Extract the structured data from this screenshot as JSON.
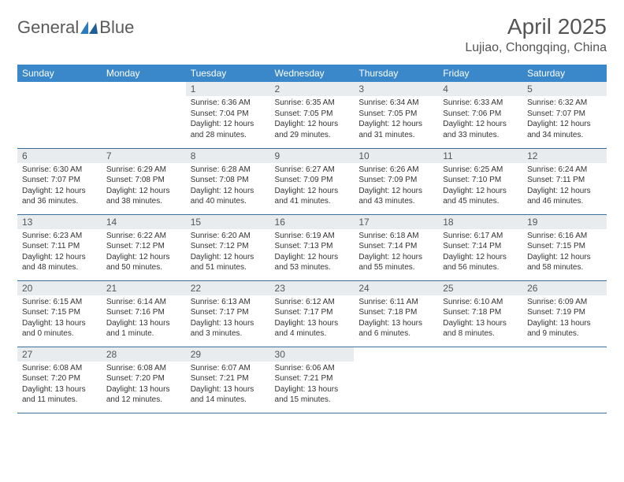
{
  "brand": {
    "name1": "General",
    "name2": "Blue"
  },
  "title": "April 2025",
  "location": "Lujiao, Chongqing, China",
  "colors": {
    "header_bg": "#3a87c9",
    "header_text": "#ffffff",
    "daynum_bg": "#e9ecef",
    "border": "#3a6f9a",
    "logo_gray": "#5a5a5a",
    "logo_blue": "#2b7bbf"
  },
  "layout": {
    "cols": 7,
    "rows": 5
  },
  "dayHeaders": [
    "Sunday",
    "Monday",
    "Tuesday",
    "Wednesday",
    "Thursday",
    "Friday",
    "Saturday"
  ],
  "weeks": [
    [
      null,
      null,
      {
        "n": "1",
        "sr": "Sunrise: 6:36 AM",
        "ss": "Sunset: 7:04 PM",
        "d1": "Daylight: 12 hours",
        "d2": "and 28 minutes."
      },
      {
        "n": "2",
        "sr": "Sunrise: 6:35 AM",
        "ss": "Sunset: 7:05 PM",
        "d1": "Daylight: 12 hours",
        "d2": "and 29 minutes."
      },
      {
        "n": "3",
        "sr": "Sunrise: 6:34 AM",
        "ss": "Sunset: 7:05 PM",
        "d1": "Daylight: 12 hours",
        "d2": "and 31 minutes."
      },
      {
        "n": "4",
        "sr": "Sunrise: 6:33 AM",
        "ss": "Sunset: 7:06 PM",
        "d1": "Daylight: 12 hours",
        "d2": "and 33 minutes."
      },
      {
        "n": "5",
        "sr": "Sunrise: 6:32 AM",
        "ss": "Sunset: 7:07 PM",
        "d1": "Daylight: 12 hours",
        "d2": "and 34 minutes."
      }
    ],
    [
      {
        "n": "6",
        "sr": "Sunrise: 6:30 AM",
        "ss": "Sunset: 7:07 PM",
        "d1": "Daylight: 12 hours",
        "d2": "and 36 minutes."
      },
      {
        "n": "7",
        "sr": "Sunrise: 6:29 AM",
        "ss": "Sunset: 7:08 PM",
        "d1": "Daylight: 12 hours",
        "d2": "and 38 minutes."
      },
      {
        "n": "8",
        "sr": "Sunrise: 6:28 AM",
        "ss": "Sunset: 7:08 PM",
        "d1": "Daylight: 12 hours",
        "d2": "and 40 minutes."
      },
      {
        "n": "9",
        "sr": "Sunrise: 6:27 AM",
        "ss": "Sunset: 7:09 PM",
        "d1": "Daylight: 12 hours",
        "d2": "and 41 minutes."
      },
      {
        "n": "10",
        "sr": "Sunrise: 6:26 AM",
        "ss": "Sunset: 7:09 PM",
        "d1": "Daylight: 12 hours",
        "d2": "and 43 minutes."
      },
      {
        "n": "11",
        "sr": "Sunrise: 6:25 AM",
        "ss": "Sunset: 7:10 PM",
        "d1": "Daylight: 12 hours",
        "d2": "and 45 minutes."
      },
      {
        "n": "12",
        "sr": "Sunrise: 6:24 AM",
        "ss": "Sunset: 7:11 PM",
        "d1": "Daylight: 12 hours",
        "d2": "and 46 minutes."
      }
    ],
    [
      {
        "n": "13",
        "sr": "Sunrise: 6:23 AM",
        "ss": "Sunset: 7:11 PM",
        "d1": "Daylight: 12 hours",
        "d2": "and 48 minutes."
      },
      {
        "n": "14",
        "sr": "Sunrise: 6:22 AM",
        "ss": "Sunset: 7:12 PM",
        "d1": "Daylight: 12 hours",
        "d2": "and 50 minutes."
      },
      {
        "n": "15",
        "sr": "Sunrise: 6:20 AM",
        "ss": "Sunset: 7:12 PM",
        "d1": "Daylight: 12 hours",
        "d2": "and 51 minutes."
      },
      {
        "n": "16",
        "sr": "Sunrise: 6:19 AM",
        "ss": "Sunset: 7:13 PM",
        "d1": "Daylight: 12 hours",
        "d2": "and 53 minutes."
      },
      {
        "n": "17",
        "sr": "Sunrise: 6:18 AM",
        "ss": "Sunset: 7:14 PM",
        "d1": "Daylight: 12 hours",
        "d2": "and 55 minutes."
      },
      {
        "n": "18",
        "sr": "Sunrise: 6:17 AM",
        "ss": "Sunset: 7:14 PM",
        "d1": "Daylight: 12 hours",
        "d2": "and 56 minutes."
      },
      {
        "n": "19",
        "sr": "Sunrise: 6:16 AM",
        "ss": "Sunset: 7:15 PM",
        "d1": "Daylight: 12 hours",
        "d2": "and 58 minutes."
      }
    ],
    [
      {
        "n": "20",
        "sr": "Sunrise: 6:15 AM",
        "ss": "Sunset: 7:15 PM",
        "d1": "Daylight: 13 hours",
        "d2": "and 0 minutes."
      },
      {
        "n": "21",
        "sr": "Sunrise: 6:14 AM",
        "ss": "Sunset: 7:16 PM",
        "d1": "Daylight: 13 hours",
        "d2": "and 1 minute."
      },
      {
        "n": "22",
        "sr": "Sunrise: 6:13 AM",
        "ss": "Sunset: 7:17 PM",
        "d1": "Daylight: 13 hours",
        "d2": "and 3 minutes."
      },
      {
        "n": "23",
        "sr": "Sunrise: 6:12 AM",
        "ss": "Sunset: 7:17 PM",
        "d1": "Daylight: 13 hours",
        "d2": "and 4 minutes."
      },
      {
        "n": "24",
        "sr": "Sunrise: 6:11 AM",
        "ss": "Sunset: 7:18 PM",
        "d1": "Daylight: 13 hours",
        "d2": "and 6 minutes."
      },
      {
        "n": "25",
        "sr": "Sunrise: 6:10 AM",
        "ss": "Sunset: 7:18 PM",
        "d1": "Daylight: 13 hours",
        "d2": "and 8 minutes."
      },
      {
        "n": "26",
        "sr": "Sunrise: 6:09 AM",
        "ss": "Sunset: 7:19 PM",
        "d1": "Daylight: 13 hours",
        "d2": "and 9 minutes."
      }
    ],
    [
      {
        "n": "27",
        "sr": "Sunrise: 6:08 AM",
        "ss": "Sunset: 7:20 PM",
        "d1": "Daylight: 13 hours",
        "d2": "and 11 minutes."
      },
      {
        "n": "28",
        "sr": "Sunrise: 6:08 AM",
        "ss": "Sunset: 7:20 PM",
        "d1": "Daylight: 13 hours",
        "d2": "and 12 minutes."
      },
      {
        "n": "29",
        "sr": "Sunrise: 6:07 AM",
        "ss": "Sunset: 7:21 PM",
        "d1": "Daylight: 13 hours",
        "d2": "and 14 minutes."
      },
      {
        "n": "30",
        "sr": "Sunrise: 6:06 AM",
        "ss": "Sunset: 7:21 PM",
        "d1": "Daylight: 13 hours",
        "d2": "and 15 minutes."
      },
      null,
      null,
      null
    ]
  ]
}
